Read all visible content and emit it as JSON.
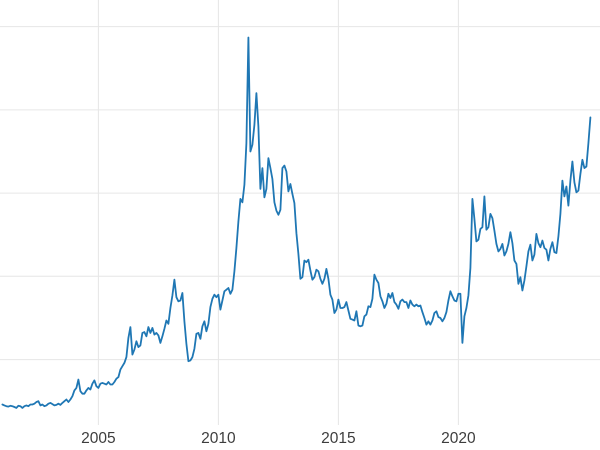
{
  "chart_data": {
    "type": "line",
    "title": "",
    "xlabel": "",
    "ylabel": "",
    "legend": null,
    "grid": true,
    "background": "#ffffff",
    "line_color": "#1f77b4",
    "grid_color": "#e6e6e6",
    "tick_label_color": "#3d3d3d",
    "x_ticks": [
      2005,
      2010,
      2015,
      2020
    ],
    "x_tick_labels": [
      "2005",
      "2010",
      "2015",
      "2020"
    ],
    "y_gridlines": [
      10,
      20,
      30,
      40,
      50
    ],
    "xlim": [
      2000.9,
      2025.9
    ],
    "ylim": [
      2.5,
      52
    ],
    "x_start": 2001.0,
    "x_step_years": 0.0833333,
    "values": [
      4.6,
      4.5,
      4.4,
      4.35,
      4.45,
      4.4,
      4.3,
      4.2,
      4.45,
      4.4,
      4.2,
      4.4,
      4.5,
      4.4,
      4.6,
      4.6,
      4.7,
      4.9,
      5.0,
      4.5,
      4.6,
      4.4,
      4.5,
      4.7,
      4.8,
      4.65,
      4.5,
      4.55,
      4.7,
      4.55,
      4.8,
      5.0,
      5.2,
      4.9,
      5.2,
      5.6,
      6.3,
      6.6,
      7.6,
      6.2,
      5.9,
      5.9,
      6.3,
      6.6,
      6.4,
      7.1,
      7.5,
      6.8,
      6.6,
      7.1,
      7.2,
      7.1,
      7.0,
      7.3,
      7.0,
      7.0,
      7.3,
      7.7,
      7.9,
      8.8,
      9.2,
      9.6,
      10.3,
      12.6,
      13.9,
      10.6,
      11.2,
      12.2,
      11.5,
      11.7,
      13.2,
      13.3,
      12.8,
      13.9,
      13.2,
      13.8,
      13.0,
      13.2,
      12.9,
      12.0,
      12.8,
      13.7,
      14.7,
      14.3,
      16.2,
      17.7,
      19.6,
      17.5,
      17.0,
      17.1,
      18.0,
      14.6,
      11.9,
      9.8,
      9.9,
      10.3,
      11.3,
      13.1,
      13.2,
      12.5,
      14.0,
      14.6,
      13.4,
      14.3,
      16.3,
      17.3,
      17.8,
      17.5,
      17.8,
      16.0,
      17.1,
      18.2,
      18.4,
      18.6,
      17.9,
      18.4,
      20.6,
      23.4,
      26.6,
      29.3,
      28.9,
      31.0,
      36.0,
      48.7,
      35.0,
      35.8,
      38.2,
      42.0,
      38.0,
      30.5,
      33.0,
      29.5,
      30.5,
      34.2,
      33.0,
      31.7,
      28.9,
      27.9,
      27.4,
      28.0,
      33.0,
      33.3,
      32.6,
      30.2,
      31.1,
      29.9,
      28.8,
      25.2,
      22.7,
      19.7,
      19.9,
      21.9,
      21.7,
      22.0,
      20.7,
      19.6,
      19.9,
      20.8,
      20.6,
      19.7,
      19.1,
      19.7,
      20.9,
      19.7,
      17.8,
      17.2,
      15.6,
      16.0,
      17.2,
      16.2,
      16.2,
      16.3,
      16.9,
      15.9,
      14.9,
      14.8,
      14.7,
      15.8,
      14.1,
      14.0,
      14.1,
      15.2,
      15.4,
      16.4,
      16.3,
      17.3,
      20.2,
      19.6,
      19.2,
      17.6,
      17.0,
      16.2,
      16.7,
      17.9,
      17.4,
      18.0,
      16.9,
      16.6,
      16.1,
      17.0,
      17.2,
      16.9,
      16.9,
      16.2,
      17.1,
      16.6,
      16.4,
      16.6,
      16.4,
      16.5,
      15.7,
      15.0,
      14.2,
      14.6,
      14.2,
      14.7,
      15.6,
      15.8,
      15.1,
      15.0,
      14.6,
      15.0,
      15.7,
      17.1,
      18.2,
      17.6,
      17.1,
      17.0,
      17.9,
      17.9,
      12.0,
      15.2,
      16.2,
      17.7,
      21.0,
      29.3,
      26.9,
      24.2,
      24.4,
      25.7,
      25.9,
      29.6,
      25.6,
      25.9,
      27.5,
      27.0,
      25.5,
      23.9,
      23.0,
      23.3,
      23.9,
      22.5,
      23.0,
      23.9,
      25.3,
      24.0,
      21.9,
      21.5,
      19.1,
      19.9,
      18.3,
      19.5,
      21.2,
      23.0,
      23.8,
      21.9,
      22.6,
      25.1,
      24.0,
      23.5,
      24.3,
      23.4,
      23.2,
      21.9,
      23.3,
      24.1,
      22.9,
      22.8,
      24.8,
      27.5,
      31.5,
      29.6,
      30.8,
      28.5,
      31.5,
      33.8,
      31.3,
      30.1,
      30.3,
      32.3,
      34.0,
      33.0,
      33.2,
      36.0,
      39.1
    ]
  }
}
